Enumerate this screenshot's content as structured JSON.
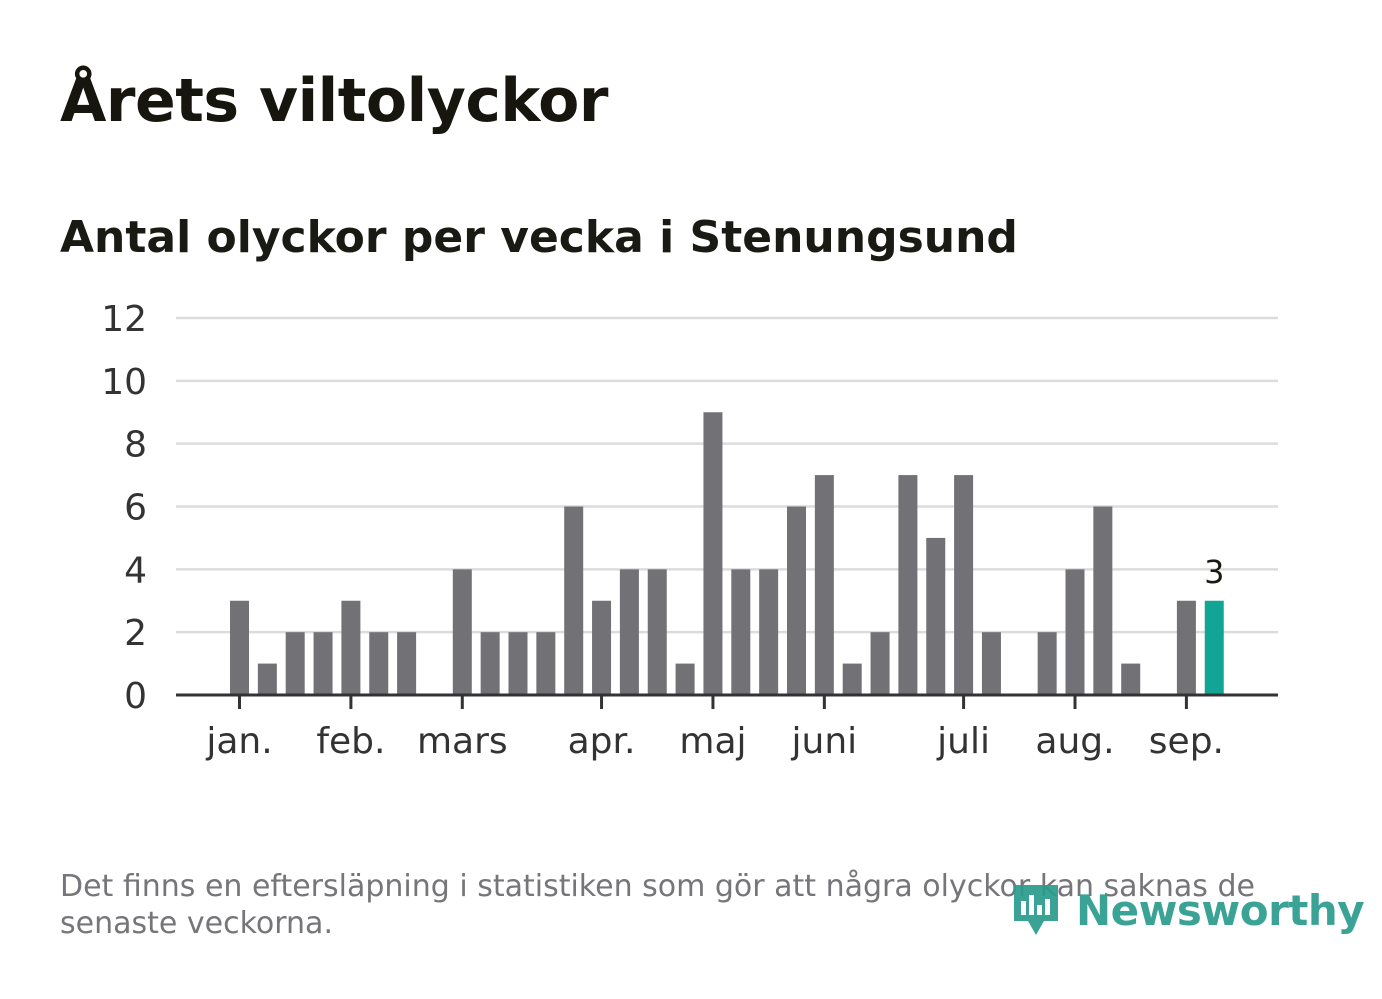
{
  "header": {
    "title": "Årets viltolyckor",
    "subtitle": "Antal olyckor per vecka i Stenungsund"
  },
  "chart_data": {
    "type": "bar",
    "title": "Årets viltolyckor",
    "subtitle": "Antal olyckor per vecka i Stenungsund",
    "ylim": [
      0,
      12
    ],
    "yticks": [
      0,
      2,
      4,
      6,
      8,
      10,
      12
    ],
    "grid": true,
    "values": [
      3,
      1,
      2,
      2,
      3,
      2,
      2,
      0,
      4,
      2,
      2,
      2,
      6,
      3,
      4,
      4,
      1,
      9,
      4,
      4,
      6,
      7,
      1,
      2,
      7,
      5,
      7,
      2,
      0,
      2,
      4,
      6,
      1,
      0,
      3,
      3
    ],
    "highlight_index": 35,
    "highlight_label": "3",
    "month_labels": [
      {
        "label": "jan.",
        "week_index": 0
      },
      {
        "label": "feb.",
        "week_index": 4
      },
      {
        "label": "mars",
        "week_index": 8
      },
      {
        "label": "apr.",
        "week_index": 13
      },
      {
        "label": "maj",
        "week_index": 17
      },
      {
        "label": "juni",
        "week_index": 21
      },
      {
        "label": "juli",
        "week_index": 26
      },
      {
        "label": "aug.",
        "week_index": 30
      },
      {
        "label": "sep.",
        "week_index": 34
      }
    ],
    "colors": {
      "bar": "#727176",
      "highlight": "#12a595",
      "grid": "#dcdcdc",
      "axis": "#333333"
    }
  },
  "footer": {
    "note": "Det finns en eftersläpning i statistiken som gör att några olyckor kan saknas de senaste veckorna.",
    "brand": "Newsworthy",
    "brand_icon": "newsworthy-logo-icon"
  }
}
